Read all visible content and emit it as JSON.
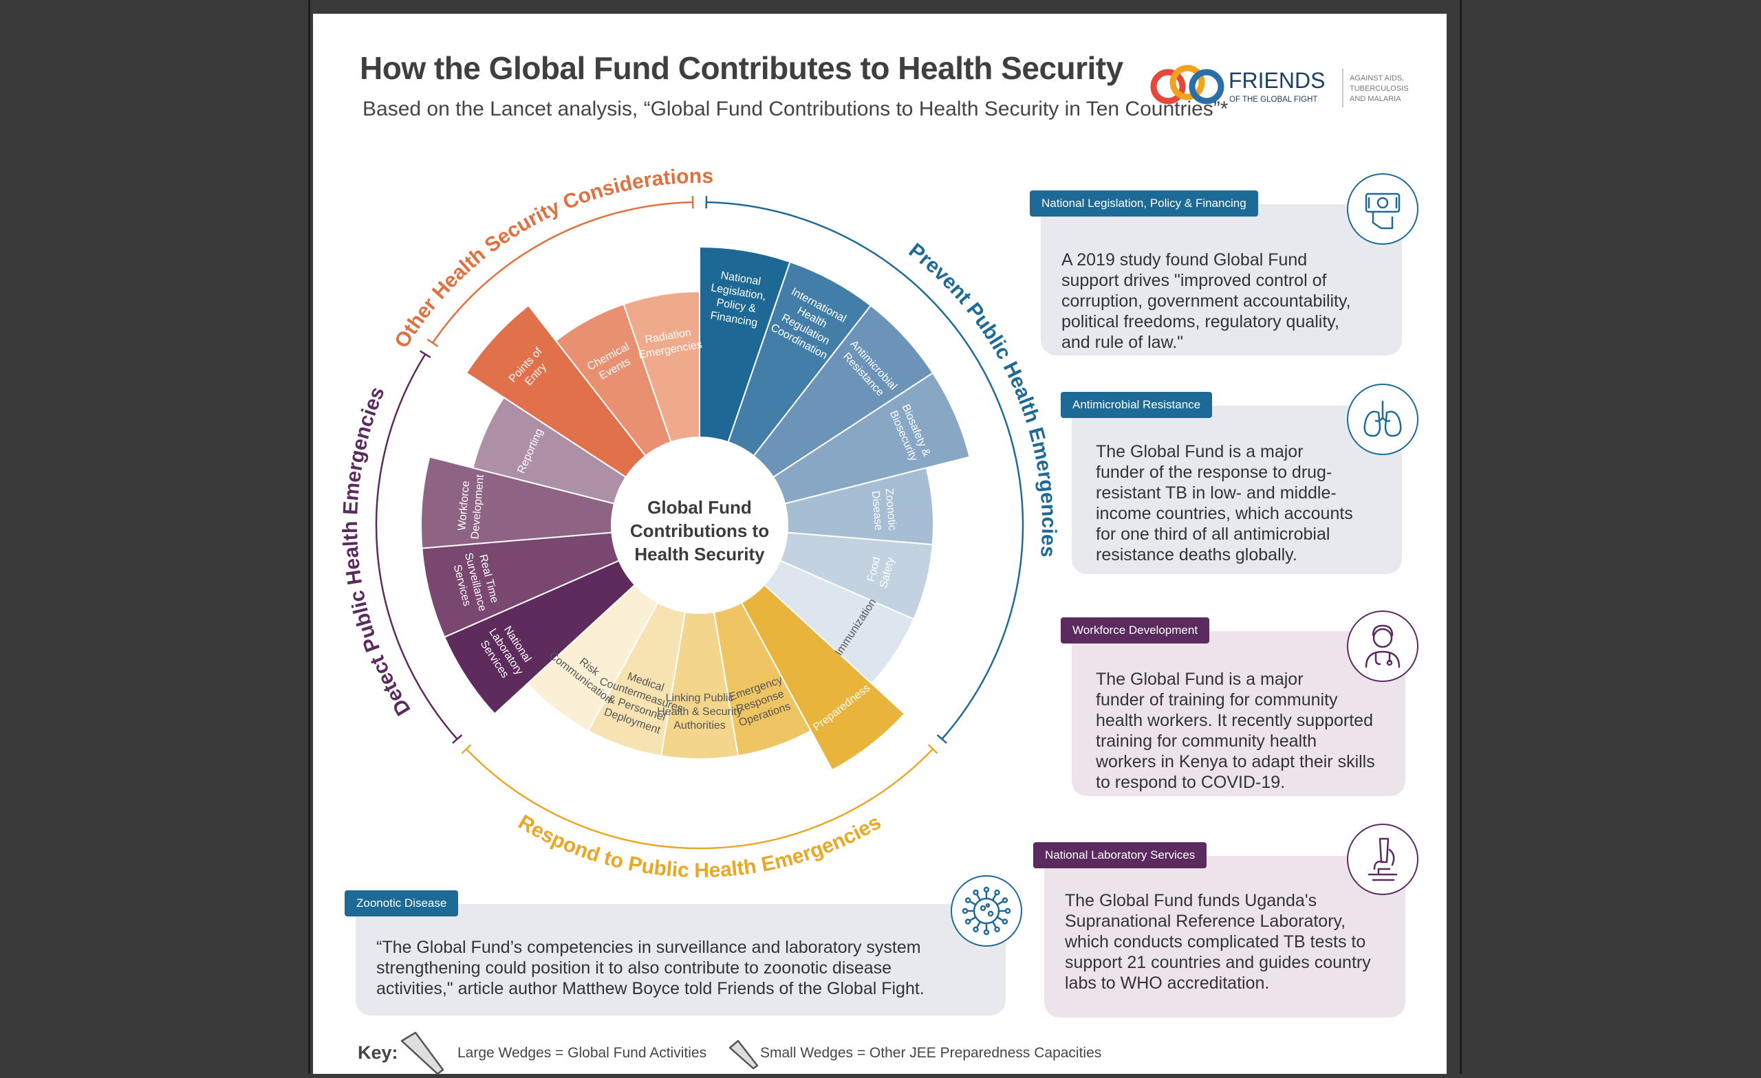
{
  "title": "How the Global Fund Contributes to Health Security",
  "subtitle": "Based on the Lancet analysis, “Global Fund Contributions to Health Security in Ten Countries”*",
  "logo": {
    "name": "FRIENDS",
    "sub": "OF THE GLOBAL FIGHT",
    "tagline": [
      "AGAINST AIDS,",
      "TUBERCULOSIS",
      "AND MALARIA"
    ],
    "colors": [
      "#e8463a",
      "#f4a21e",
      "#2a6fa7"
    ]
  },
  "center_label": [
    "Global Fund",
    "Contributions to",
    "Health Security"
  ],
  "categories": [
    {
      "label": "Prevent Public Health Emergencies",
      "color": "#1e6a96"
    },
    {
      "label": "Detect Public Health Emergencies",
      "color": "#5b2a5e"
    },
    {
      "label": "Respond to Public Health Emergencies",
      "color": "#e8a826"
    },
    {
      "label": "Other Health Security Considerations",
      "color": "#e0703f"
    }
  ],
  "wedges": [
    {
      "lines": [
        "National",
        "Legislation,",
        "Policy &",
        "Financing"
      ],
      "size": "large",
      "color": "#1d6894",
      "text": "#ffffff"
    },
    {
      "lines": [
        "International",
        "Health",
        "Regulation",
        "Coordination"
      ],
      "size": "large",
      "color": "#427ea7",
      "text": "#ffffff"
    },
    {
      "lines": [
        "Antimicrobial",
        "Resistance"
      ],
      "size": "large",
      "color": "#6b94b8",
      "text": "#ffffff"
    },
    {
      "lines": [
        "Biosafety &",
        "Biosecurity"
      ],
      "size": "large",
      "color": "#87a7c5",
      "text": "#ffffff"
    },
    {
      "lines": [
        "Zoonotic",
        "Disease"
      ],
      "size": "small",
      "color": "#a5bed3",
      "text": "#ffffff"
    },
    {
      "lines": [
        "Food",
        "Safety"
      ],
      "size": "small",
      "color": "#c3d2e0",
      "text": "#ffffff"
    },
    {
      "lines": [
        "Immunization"
      ],
      "size": "small",
      "color": "#dde5ee",
      "text": "#555555"
    },
    {
      "lines": [
        "Preparedness"
      ],
      "size": "large",
      "color": "#e9b43c",
      "text": "#ffffff"
    },
    {
      "lines": [
        "Emergency",
        "Response",
        "Operations"
      ],
      "size": "small",
      "color": "#efc563",
      "text": "#555555"
    },
    {
      "lines": [
        "Linking Public",
        "Health & Security",
        "Authorities"
      ],
      "size": "small",
      "color": "#f3d58c",
      "text": "#555555"
    },
    {
      "lines": [
        "Medical",
        "Countermeasures",
        "& Personnel",
        "Deployment"
      ],
      "size": "small",
      "color": "#f7e3b2",
      "text": "#555555"
    },
    {
      "lines": [
        "Risk",
        "Communication"
      ],
      "size": "small",
      "color": "#fbefd5",
      "text": "#555555"
    },
    {
      "lines": [
        "National",
        "Laboratory",
        "Services"
      ],
      "size": "large",
      "color": "#5e2b5d",
      "text": "#ffffff"
    },
    {
      "lines": [
        "Real Time",
        "Surveillance",
        "Services"
      ],
      "size": "large",
      "color": "#79476f",
      "text": "#ffffff"
    },
    {
      "lines": [
        "Workforce",
        "Development"
      ],
      "size": "large",
      "color": "#8e6383",
      "text": "#ffffff"
    },
    {
      "lines": [
        "Reporting"
      ],
      "size": "small",
      "color": "#ad90a6",
      "text": "#ffffff"
    },
    {
      "lines": [
        "Points of",
        "Entry"
      ],
      "size": "large",
      "color": "#e0714a",
      "text": "#ffffff"
    },
    {
      "lines": [
        "Chemical",
        "Events"
      ],
      "size": "small",
      "color": "#e99071",
      "text": "#ffffff"
    },
    {
      "lines": [
        "Radiation",
        "Emergencies"
      ],
      "size": "small",
      "color": "#eeaa8a",
      "text": "#ffffff"
    }
  ],
  "callouts": [
    {
      "tag": "National Legislation, Policy & Financing",
      "icon": "money-hand-icon",
      "color": "#1e6a96",
      "bg": "#e7e9ee",
      "lines": [
        "A 2019 study found Global Fund",
        "support drives \"improved control of",
        "corruption, government accountability,",
        "political freedoms, regulatory quality,",
        "and rule of law.\""
      ]
    },
    {
      "tag": "Antimicrobial Resistance",
      "icon": "lungs-icon",
      "color": "#1e6a96",
      "bg": "#e7e9ee",
      "lines": [
        "The Global Fund is a major",
        "funder of the response to drug-",
        "resistant TB in low- and middle-",
        "income countries, which accounts",
        "for one third of all antimicrobial",
        "resistance deaths globally."
      ]
    },
    {
      "tag": "Workforce Development",
      "icon": "health-worker-icon",
      "color": "#5b2a5e",
      "bg": "#ece4ea",
      "lines": [
        "The Global Fund is a major",
        "funder of training for community",
        "health workers. It recently supported",
        "training for community health",
        "workers in Kenya to adapt their skills",
        "to respond to COVID-19."
      ]
    },
    {
      "tag": "National Laboratory Services",
      "icon": "microscope-icon",
      "color": "#5b2a5e",
      "bg": "#ece4ea",
      "lines": [
        "The Global Fund funds Uganda's",
        "Supranational Reference Laboratory,",
        "which conducts complicated TB tests to",
        "support 21 countries and guides country",
        "labs to WHO accreditation."
      ]
    },
    {
      "tag": "Zoonotic Disease",
      "icon": "virus-icon",
      "color": "#1e6a96",
      "bg": "#e7e9ee",
      "lines": [
        "“The Global Fund’s competencies in surveillance and laboratory system",
        "strengthening could position it to also contribute to zoonotic disease",
        "activities,\" article author Matthew Boyce told Friends of the Global Fight."
      ]
    }
  ],
  "key": {
    "label": "Key:",
    "large": "Large Wedges = Global Fund Activities",
    "small": "Small Wedges = Other JEE Preparedness Capacities"
  }
}
